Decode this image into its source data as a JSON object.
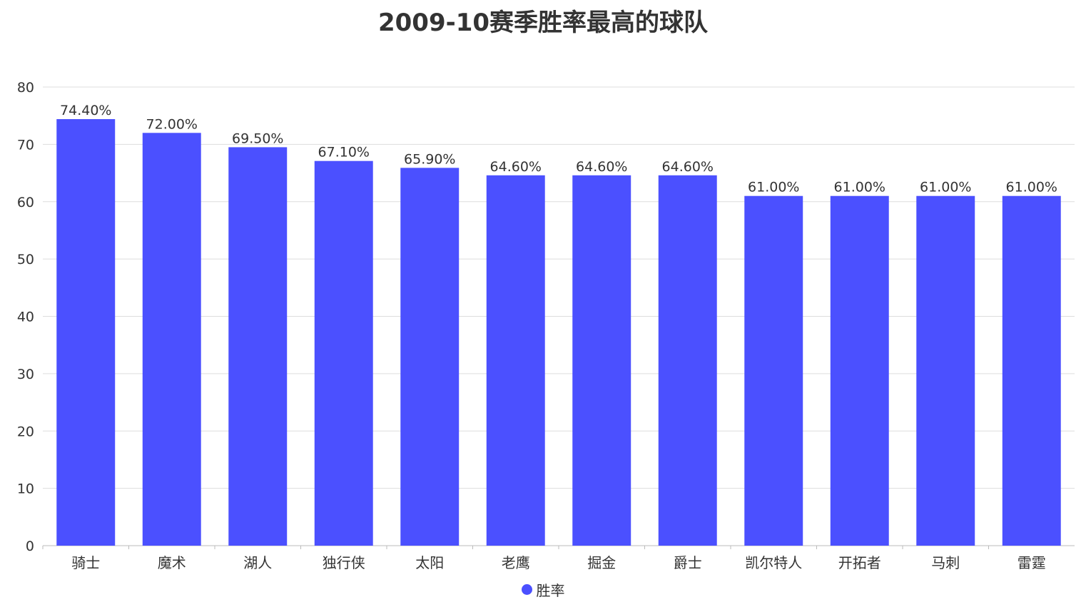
{
  "chart_data": {
    "type": "bar",
    "title": "2009-10赛季胜率最高的球队",
    "xlabel": "",
    "ylabel": "",
    "categories": [
      "骑士",
      "魔术",
      "湖人",
      "独行侠",
      "太阳",
      "老鹰",
      "掘金",
      "爵士",
      "凯尔特人",
      "开拓者",
      "马刺",
      "雷霆"
    ],
    "series": [
      {
        "name": "胜率",
        "values": [
          74.4,
          72.0,
          69.5,
          67.1,
          65.9,
          64.6,
          64.6,
          64.6,
          61.0,
          61.0,
          61.0,
          61.0
        ],
        "labels": [
          "74.40%",
          "72.00%",
          "69.50%",
          "67.10%",
          "65.90%",
          "64.60%",
          "64.60%",
          "64.60%",
          "61.00%",
          "61.00%",
          "61.00%",
          "61.00%"
        ],
        "color": "#4b50ff"
      }
    ],
    "ylim": [
      0,
      80
    ],
    "yticks": [
      "0",
      "10",
      "20",
      "30",
      "40",
      "50",
      "60",
      "70",
      "80"
    ],
    "grid": true,
    "legend_position": "bottom"
  }
}
